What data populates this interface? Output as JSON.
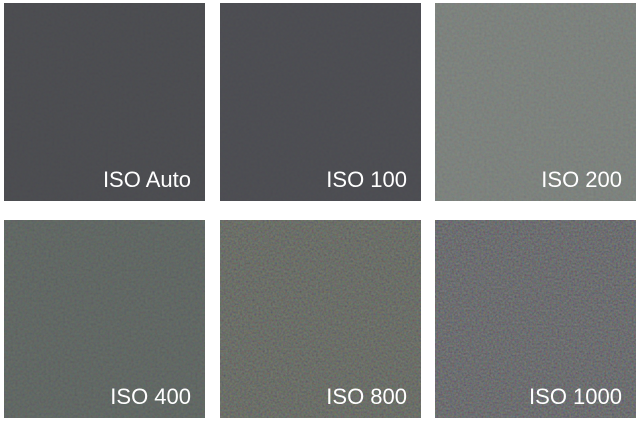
{
  "tiles": [
    {
      "label": "ISO Auto",
      "base_color": "#4a4b4f",
      "noise_level": 0.1
    },
    {
      "label": "ISO 100",
      "base_color": "#4b4c50",
      "noise_level": 0.1
    },
    {
      "label": "ISO 200",
      "base_color": "#757a76",
      "noise_level": 0.22
    },
    {
      "label": "ISO 400",
      "base_color": "#5a5f5c",
      "noise_level": 0.3
    },
    {
      "label": "ISO 800",
      "base_color": "#5b5d58",
      "noise_level": 0.55
    },
    {
      "label": "ISO 1000",
      "base_color": "#595a5b",
      "noise_level": 0.65
    }
  ]
}
